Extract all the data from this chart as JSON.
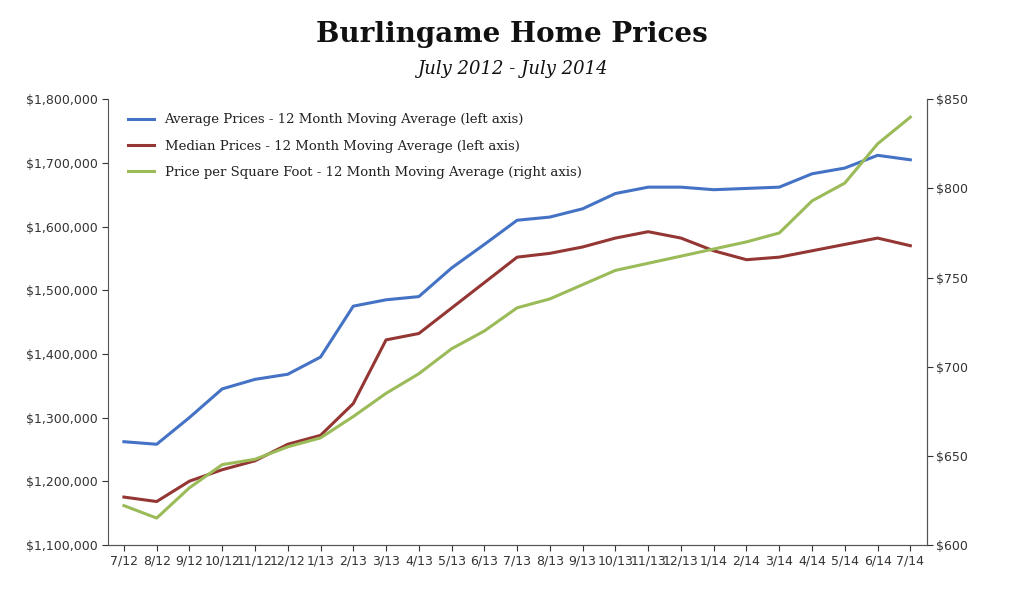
{
  "title": "Burlingame Home Prices",
  "subtitle": "July 2012 - July 2014",
  "x_labels": [
    "7/12",
    "8/12",
    "9/12",
    "10/12",
    "11/12",
    "12/12",
    "1/13",
    "2/13",
    "3/13",
    "4/13",
    "5/13",
    "6/13",
    "7/13",
    "8/13",
    "9/13",
    "10/13",
    "11/13",
    "12/13",
    "1/14",
    "2/14",
    "3/14",
    "4/14",
    "5/14",
    "6/14",
    "7/14"
  ],
  "avg_prices": [
    1262000,
    1258000,
    1300000,
    1345000,
    1360000,
    1368000,
    1395000,
    1475000,
    1485000,
    1490000,
    1535000,
    1572000,
    1610000,
    1615000,
    1628000,
    1652000,
    1662000,
    1662000,
    1658000,
    1660000,
    1662000,
    1683000,
    1692000,
    1712000,
    1705000
  ],
  "median_prices": [
    1175000,
    1168000,
    1200000,
    1218000,
    1232000,
    1258000,
    1272000,
    1322000,
    1422000,
    1432000,
    1472000,
    1512000,
    1552000,
    1558000,
    1568000,
    1582000,
    1592000,
    1582000,
    1562000,
    1548000,
    1552000,
    1562000,
    1572000,
    1582000,
    1570000
  ],
  "price_sqft": [
    622,
    615,
    632,
    645,
    648,
    655,
    660,
    672,
    685,
    696,
    710,
    720,
    733,
    738,
    746,
    754,
    758,
    762,
    766,
    770,
    775,
    793,
    803,
    825,
    840
  ],
  "avg_color": "#4472C4",
  "median_color": "#943634",
  "sqft_color": "#9BBB59",
  "left_ylim": [
    1100000,
    1800000
  ],
  "left_yticks": [
    1100000,
    1200000,
    1300000,
    1400000,
    1500000,
    1600000,
    1700000,
    1800000
  ],
  "right_ylim": [
    600,
    850
  ],
  "right_yticks": [
    600,
    650,
    700,
    750,
    800,
    850
  ],
  "legend_avg": "Average Prices - 12 Month Moving Average (left axis)",
  "legend_median": "Median Prices - 12 Month Moving Average (left axis)",
  "legend_sqft": "Price per Square Foot - 12 Month Moving Average (right axis)",
  "bg_color": "#FFFFFF",
  "line_width": 2.2
}
